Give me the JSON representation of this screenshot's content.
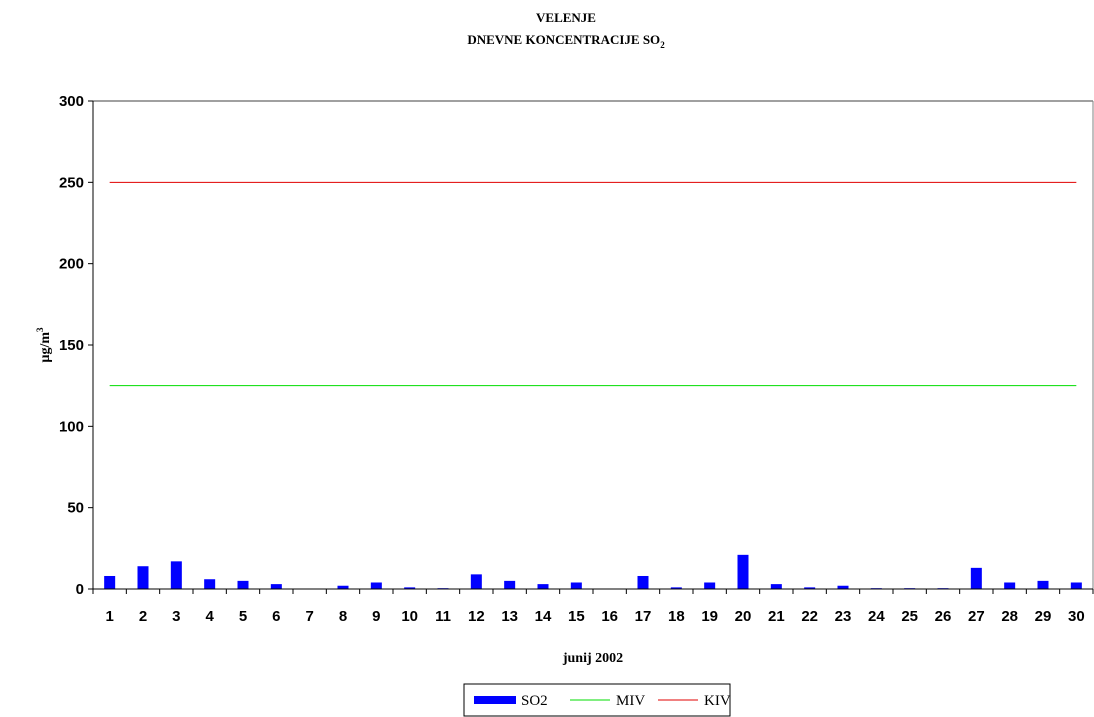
{
  "chart_data": {
    "type": "bar",
    "title": "VELENJE",
    "subtitle": {
      "text": "DNEVNE KONCENTRACIJE  SO",
      "subscript": "2"
    },
    "xlabel": "junij 2002",
    "ylabel": {
      "text": "µg/m",
      "superscript": "3"
    },
    "ylim": [
      0,
      300
    ],
    "yticks": [
      0,
      50,
      100,
      150,
      200,
      250,
      300
    ],
    "categories": [
      "1",
      "2",
      "3",
      "4",
      "5",
      "6",
      "7",
      "8",
      "9",
      "10",
      "11",
      "12",
      "13",
      "14",
      "15",
      "16",
      "17",
      "18",
      "19",
      "20",
      "21",
      "22",
      "23",
      "24",
      "25",
      "26",
      "27",
      "28",
      "29",
      "30"
    ],
    "series": [
      {
        "name": "SO2",
        "kind": "bar",
        "color": "#0000ff",
        "values": [
          8,
          14,
          17,
          6,
          5,
          3,
          0.3,
          2,
          4,
          1,
          0.5,
          9,
          5,
          3,
          4,
          0.3,
          8,
          1,
          4,
          21,
          3,
          1,
          2,
          0.5,
          0.5,
          0.5,
          13,
          4,
          5,
          4
        ]
      },
      {
        "name": "MIV",
        "kind": "line",
        "color": "#00dd00",
        "value": 125
      },
      {
        "name": "KIV",
        "kind": "line",
        "color": "#e00000",
        "value": 250
      }
    ],
    "grid": false,
    "legend_position": "bottom-center"
  }
}
